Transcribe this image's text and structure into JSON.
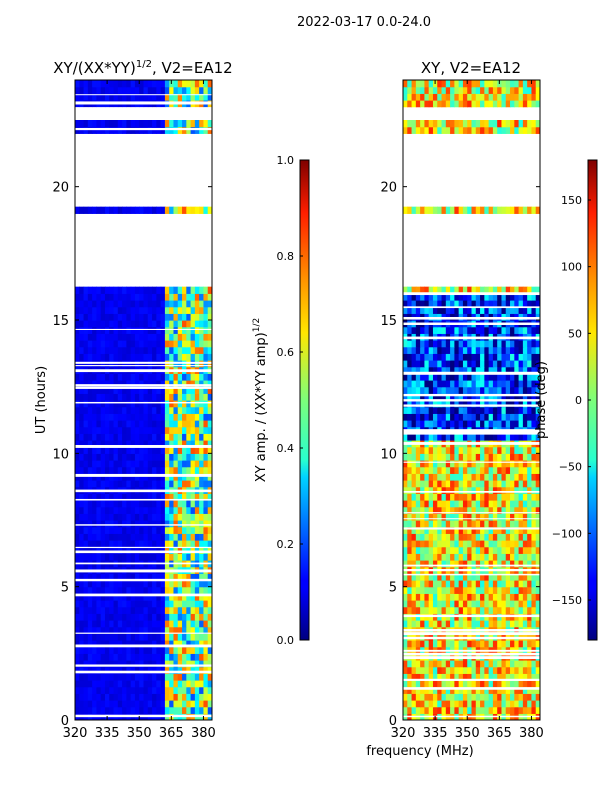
{
  "figure_title": "2022-03-17 0.0-24.0",
  "shared_xlabel": "frequency (MHz)",
  "chart_data": [
    {
      "type": "heatmap",
      "title_main": "XY/(XX*YY)",
      "title_sup": "1/2",
      "title_tail": ", V2=EA12",
      "ylabel": "UT (hours)",
      "xlim": [
        320,
        384
      ],
      "ylim": [
        0,
        24
      ],
      "xticks": [
        320,
        335,
        350,
        365,
        380
      ],
      "yticks": [
        0,
        5,
        10,
        15,
        20
      ],
      "colorbar": {
        "label_main": "XY amp. / (XX*YY amp)",
        "label_sup": "1/2",
        "range": [
          0.0,
          1.0
        ],
        "ticks": [
          "0.0",
          "0.2",
          "0.4",
          "0.6",
          "0.8",
          "1.0"
        ],
        "colormap": "jet"
      },
      "data_gaps_hours": [
        [
          18.3,
          19.0
        ],
        [
          16.2,
          18.2
        ],
        [
          19.3,
          22.1
        ],
        [
          22.6,
          23.1
        ]
      ]
    },
    {
      "type": "heatmap",
      "title": "XY, V2=EA12",
      "xlim": [
        320,
        384
      ],
      "ylim": [
        0,
        24
      ],
      "xticks": [
        320,
        335,
        350,
        365,
        380
      ],
      "yticks": [
        0,
        5,
        10,
        15,
        20
      ],
      "colorbar": {
        "label": "phase (deg)",
        "range": [
          -180,
          180
        ],
        "ticks": [
          "−150",
          "−100",
          "−50",
          "0",
          "50",
          "100",
          "150"
        ],
        "tick_values": [
          -150,
          -100,
          -50,
          0,
          50,
          100,
          150
        ],
        "colormap": "jet"
      },
      "data_gaps_hours": [
        [
          18.3,
          19.0
        ],
        [
          16.2,
          18.2
        ],
        [
          19.3,
          22.1
        ],
        [
          22.6,
          23.1
        ]
      ]
    }
  ]
}
